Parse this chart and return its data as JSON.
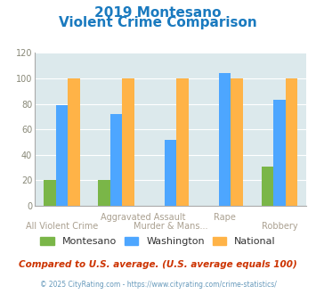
{
  "title_line1": "2019 Montesano",
  "title_line2": "Violent Crime Comparison",
  "montesano": [
    20,
    20,
    0,
    0,
    31
  ],
  "washington": [
    79,
    72,
    52,
    104,
    83
  ],
  "national": [
    100,
    100,
    100,
    100,
    100
  ],
  "color_montesano": "#7ab648",
  "color_washington": "#4da6ff",
  "color_national": "#ffb347",
  "ylim": [
    0,
    120
  ],
  "yticks": [
    0,
    20,
    40,
    60,
    80,
    100,
    120
  ],
  "bg_color": "#dce9ec",
  "title_color": "#1a7abf",
  "footer_text": "Compared to U.S. average. (U.S. average equals 100)",
  "copyright_text": "© 2025 CityRating.com - https://www.cityrating.com/crime-statistics/",
  "legend_labels": [
    "Montesano",
    "Washington",
    "National"
  ],
  "xlabel_color": "#aaa090",
  "bar_width": 0.22
}
